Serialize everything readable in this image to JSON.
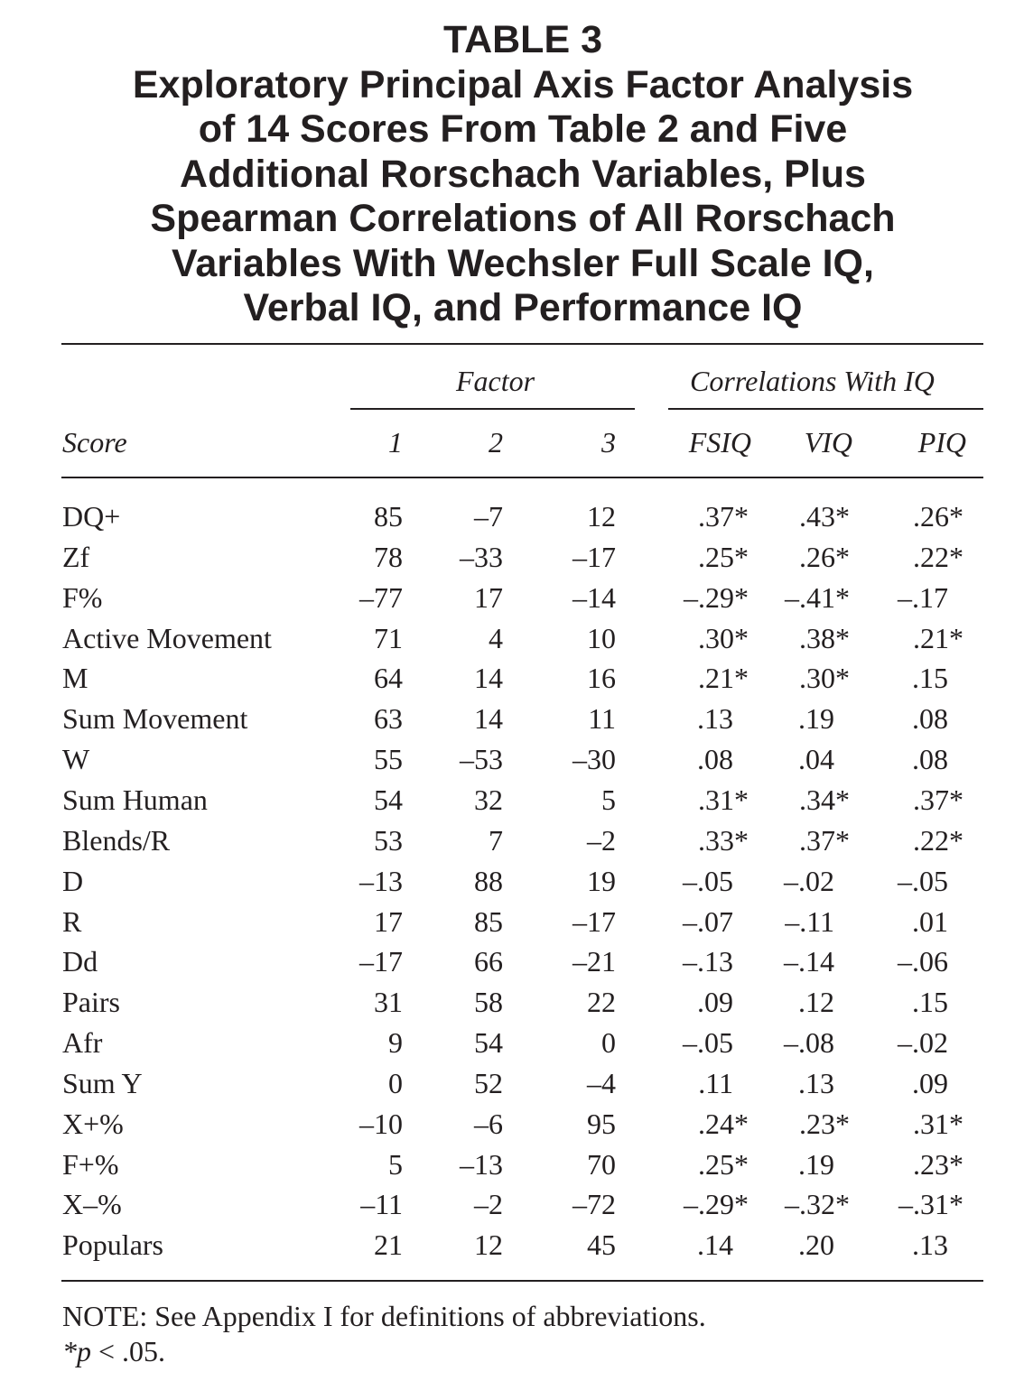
{
  "title_lines": [
    "TABLE 3",
    "Exploratory Principal Axis Factor Analysis",
    "of 14 Scores From Table 2 and Five",
    "Additional Rorschach Variables, Plus",
    "Spearman Correlations of All Rorschach",
    "Variables  With Wechsler Full Scale IQ,",
    "Verbal IQ, and Performance IQ"
  ],
  "group_headers": {
    "factor": "Factor",
    "correlations": "Correlations With IQ"
  },
  "columns": [
    "Score",
    "1",
    "2",
    "3",
    "FSIQ",
    "VIQ",
    "PIQ"
  ],
  "rows": [
    [
      "DQ+",
      "85",
      "–7",
      "12",
      ".37*",
      ".43*",
      ".26*"
    ],
    [
      "Zf",
      "78",
      "–33",
      "–17",
      ".25*",
      ".26*",
      ".22*"
    ],
    [
      "F%",
      "–77",
      "17",
      "–14",
      "–.29*",
      "–.41*",
      "–.17"
    ],
    [
      "Active Movement",
      "71",
      "4",
      "10",
      ".30*",
      ".38*",
      ".21*"
    ],
    [
      "M",
      "64",
      "14",
      "16",
      ".21*",
      ".30*",
      ".15"
    ],
    [
      "Sum Movement",
      "63",
      "14",
      "11",
      ".13",
      ".19",
      ".08"
    ],
    [
      "W",
      "55",
      "–53",
      "–30",
      ".08",
      ".04",
      ".08"
    ],
    [
      "Sum Human",
      "54",
      "32",
      "5",
      ".31*",
      ".34*",
      ".37*"
    ],
    [
      "Blends/R",
      "53",
      "7",
      "–2",
      ".33*",
      ".37*",
      ".22*"
    ],
    [
      "D",
      "–13",
      "88",
      "19",
      "–.05",
      "–.02",
      "–.05"
    ],
    [
      "R",
      "17",
      "85",
      "–17",
      "–.07",
      "–.11",
      ".01"
    ],
    [
      "Dd",
      "–17",
      "66",
      "–21",
      "–.13",
      "–.14",
      "–.06"
    ],
    [
      "Pairs",
      "31",
      "58",
      "22",
      ".09",
      ".12",
      ".15"
    ],
    [
      "Afr",
      "9",
      "54",
      "0",
      "–.05",
      "–.08",
      "–.02"
    ],
    [
      "Sum Y",
      "0",
      "52",
      "–4",
      ".11",
      ".13",
      ".09"
    ],
    [
      "X+%",
      "–10",
      "–6",
      "95",
      ".24*",
      ".23*",
      ".31*"
    ],
    [
      "F+%",
      "5",
      "–13",
      "70",
      ".25*",
      ".19",
      ".23*"
    ],
    [
      "X–%",
      "–11",
      "–2",
      "–72",
      "–.29*",
      "–.32*",
      "–.31*"
    ],
    [
      "Populars",
      "21",
      "12",
      "45",
      ".14",
      ".20",
      ".13"
    ]
  ],
  "note": {
    "line1": "NOTE: See Appendix I for definitions of abbreviations.",
    "line2_symbol": "*p",
    "line2_text": " < .05."
  }
}
